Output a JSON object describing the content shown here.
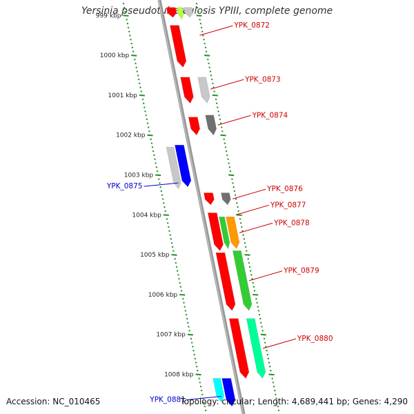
{
  "title": "Yersinia pseudotuberculosis YPIII, complete genome",
  "footer": {
    "accession": "Accession: NC_010465",
    "summary": "Topology: circular; Length: 4,689,441 bp; Genes: 4,290"
  },
  "colors": {
    "backbone": "#999999",
    "tick": "#228B22",
    "label_forward": "#cc0000",
    "label_reverse": "#0000cc"
  },
  "ruler_labels": [
    {
      "kbp": 999,
      "label": "999 kbp"
    },
    {
      "kbp": 1000,
      "label": "1000 kbp"
    },
    {
      "kbp": 1001,
      "label": "1001 kbp"
    },
    {
      "kbp": 1002,
      "label": "1002 kbp"
    },
    {
      "kbp": 1003,
      "label": "1003 kbp"
    },
    {
      "kbp": 1004,
      "label": "1004 kbp"
    },
    {
      "kbp": 1005,
      "label": "1005 kbp"
    },
    {
      "kbp": 1006,
      "label": "1006 kbp"
    },
    {
      "kbp": 1007,
      "label": "1007 kbp"
    },
    {
      "kbp": 1008,
      "label": "1008 kbp"
    }
  ],
  "features": [
    {
      "start": 998.8,
      "end": 999.05,
      "ring": "f1",
      "color": "#ff0000"
    },
    {
      "start": 998.8,
      "end": 999.1,
      "ring": "f2",
      "color": "#b5ff40"
    },
    {
      "start": 998.8,
      "end": 999.05,
      "ring": "f3",
      "color": "#c8c8c8"
    },
    {
      "start": 999.25,
      "end": 1000.3,
      "ring": "f1",
      "color": "#ff0000"
    },
    {
      "start": 1000.55,
      "end": 1001.2,
      "ring": "f1",
      "color": "#ff0000"
    },
    {
      "start": 1000.55,
      "end": 1001.2,
      "ring": "f3",
      "color": "#c8c8c8"
    },
    {
      "start": 1001.55,
      "end": 1002.0,
      "ring": "f1",
      "color": "#ff0000"
    },
    {
      "start": 1001.5,
      "end": 1002.0,
      "ring": "f3",
      "color": "#707070"
    },
    {
      "start": 1002.3,
      "end": 1003.35,
      "ring": "r1",
      "color": "#c8c8c8"
    },
    {
      "start": 1002.25,
      "end": 1003.3,
      "ring": "r2",
      "color": "#0000ff"
    },
    {
      "start": 1003.45,
      "end": 1003.75,
      "ring": "f1",
      "color": "#ff0000"
    },
    {
      "start": 1003.45,
      "end": 1003.75,
      "ring": "f3",
      "color": "#707070"
    },
    {
      "start": 1003.95,
      "end": 1004.9,
      "ring": "f1",
      "color": "#ff0000"
    },
    {
      "start": 1004.05,
      "end": 1004.85,
      "ring": "f2",
      "color": "#33cc33"
    },
    {
      "start": 1004.05,
      "end": 1004.85,
      "ring": "f3",
      "color": "#ff9900"
    },
    {
      "start": 1004.95,
      "end": 1006.4,
      "ring": "f1",
      "color": "#ff0000"
    },
    {
      "start": 1004.9,
      "end": 1006.4,
      "ring": "f3",
      "color": "#33cc33"
    },
    {
      "start": 1006.6,
      "end": 1008.1,
      "ring": "f1",
      "color": "#ff0000"
    },
    {
      "start": 1006.6,
      "end": 1008.1,
      "ring": "f3",
      "color": "#00ff99"
    },
    {
      "start": 1008.1,
      "end": 1008.7,
      "ring": "r1",
      "color": "#00ffff"
    },
    {
      "start": 1008.1,
      "end": 1008.8,
      "ring": "r2",
      "color": "#0000ff"
    }
  ],
  "gene_labels": [
    {
      "name": "YPK_0872",
      "kbp": 999.5,
      "side": "right",
      "strand": "forward"
    },
    {
      "name": "YPK_0873",
      "kbp": 1000.85,
      "side": "right",
      "strand": "forward"
    },
    {
      "name": "YPK_0874",
      "kbp": 1001.75,
      "side": "right",
      "strand": "forward"
    },
    {
      "name": "YPK_0875",
      "kbp": 1003.2,
      "side": "left",
      "strand": "reverse"
    },
    {
      "name": "YPK_0876",
      "kbp": 1003.6,
      "side": "right",
      "strand": "forward"
    },
    {
      "name": "YPK_0877",
      "kbp": 1004.0,
      "side": "right",
      "strand": "forward"
    },
    {
      "name": "YPK_0878",
      "kbp": 1004.45,
      "side": "right",
      "strand": "forward"
    },
    {
      "name": "YPK_0879",
      "kbp": 1005.65,
      "side": "right",
      "strand": "forward"
    },
    {
      "name": "YPK_0880",
      "kbp": 1007.35,
      "side": "right",
      "strand": "forward"
    },
    {
      "name": "YPK_0881",
      "kbp": 1008.55,
      "side": "left",
      "strand": "reverse"
    }
  ]
}
